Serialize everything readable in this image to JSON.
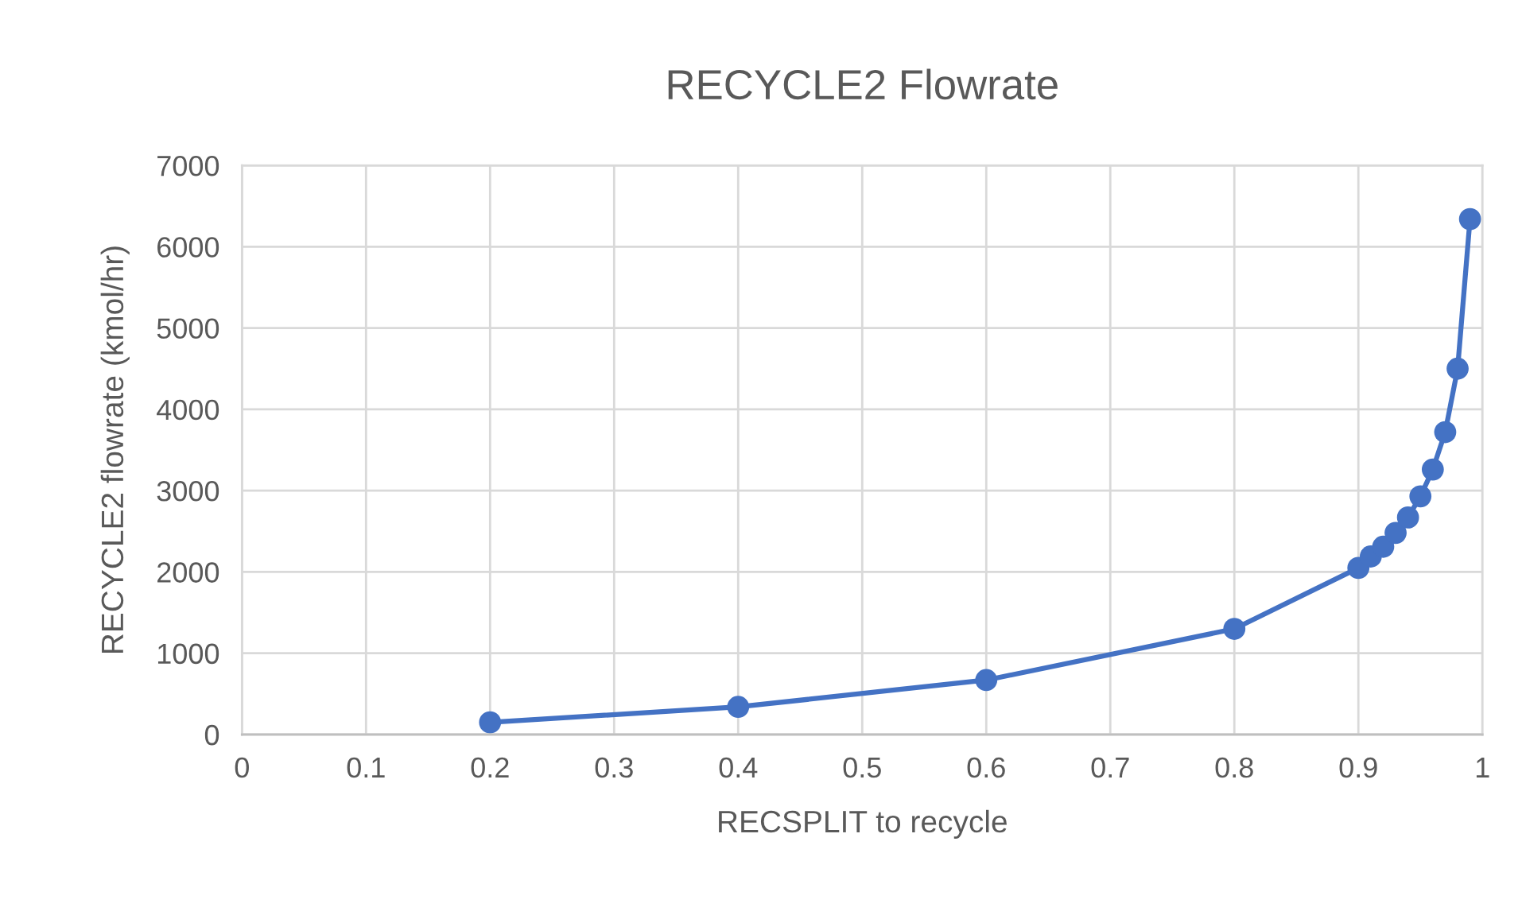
{
  "chart_data": {
    "type": "line",
    "title": "RECYCLE2 Flowrate",
    "xlabel": "RECSPLIT to recycle",
    "ylabel": "RECYCLE2 flowrate (kmol/hr)",
    "x": [
      0.2,
      0.4,
      0.6,
      0.8,
      0.9,
      0.91,
      0.92,
      0.93,
      0.94,
      0.95,
      0.96,
      0.97,
      0.98,
      0.99
    ],
    "series": [
      {
        "color": "#4472c4",
        "values": [
          150,
          340,
          670,
          1300,
          2050,
          2190,
          2310,
          2480,
          2670,
          2930,
          3260,
          3720,
          4500,
          6340
        ]
      }
    ],
    "xlim": [
      0,
      1
    ],
    "xticks": [
      0,
      0.1,
      0.2,
      0.3,
      0.4,
      0.5,
      0.6,
      0.7,
      0.8,
      0.9,
      1
    ],
    "ylim": [
      0,
      7000
    ],
    "yticks": [
      0,
      1000,
      2000,
      3000,
      4000,
      5000,
      6000,
      7000
    ],
    "grid": true,
    "marker": "circle",
    "line_style": "solid"
  }
}
